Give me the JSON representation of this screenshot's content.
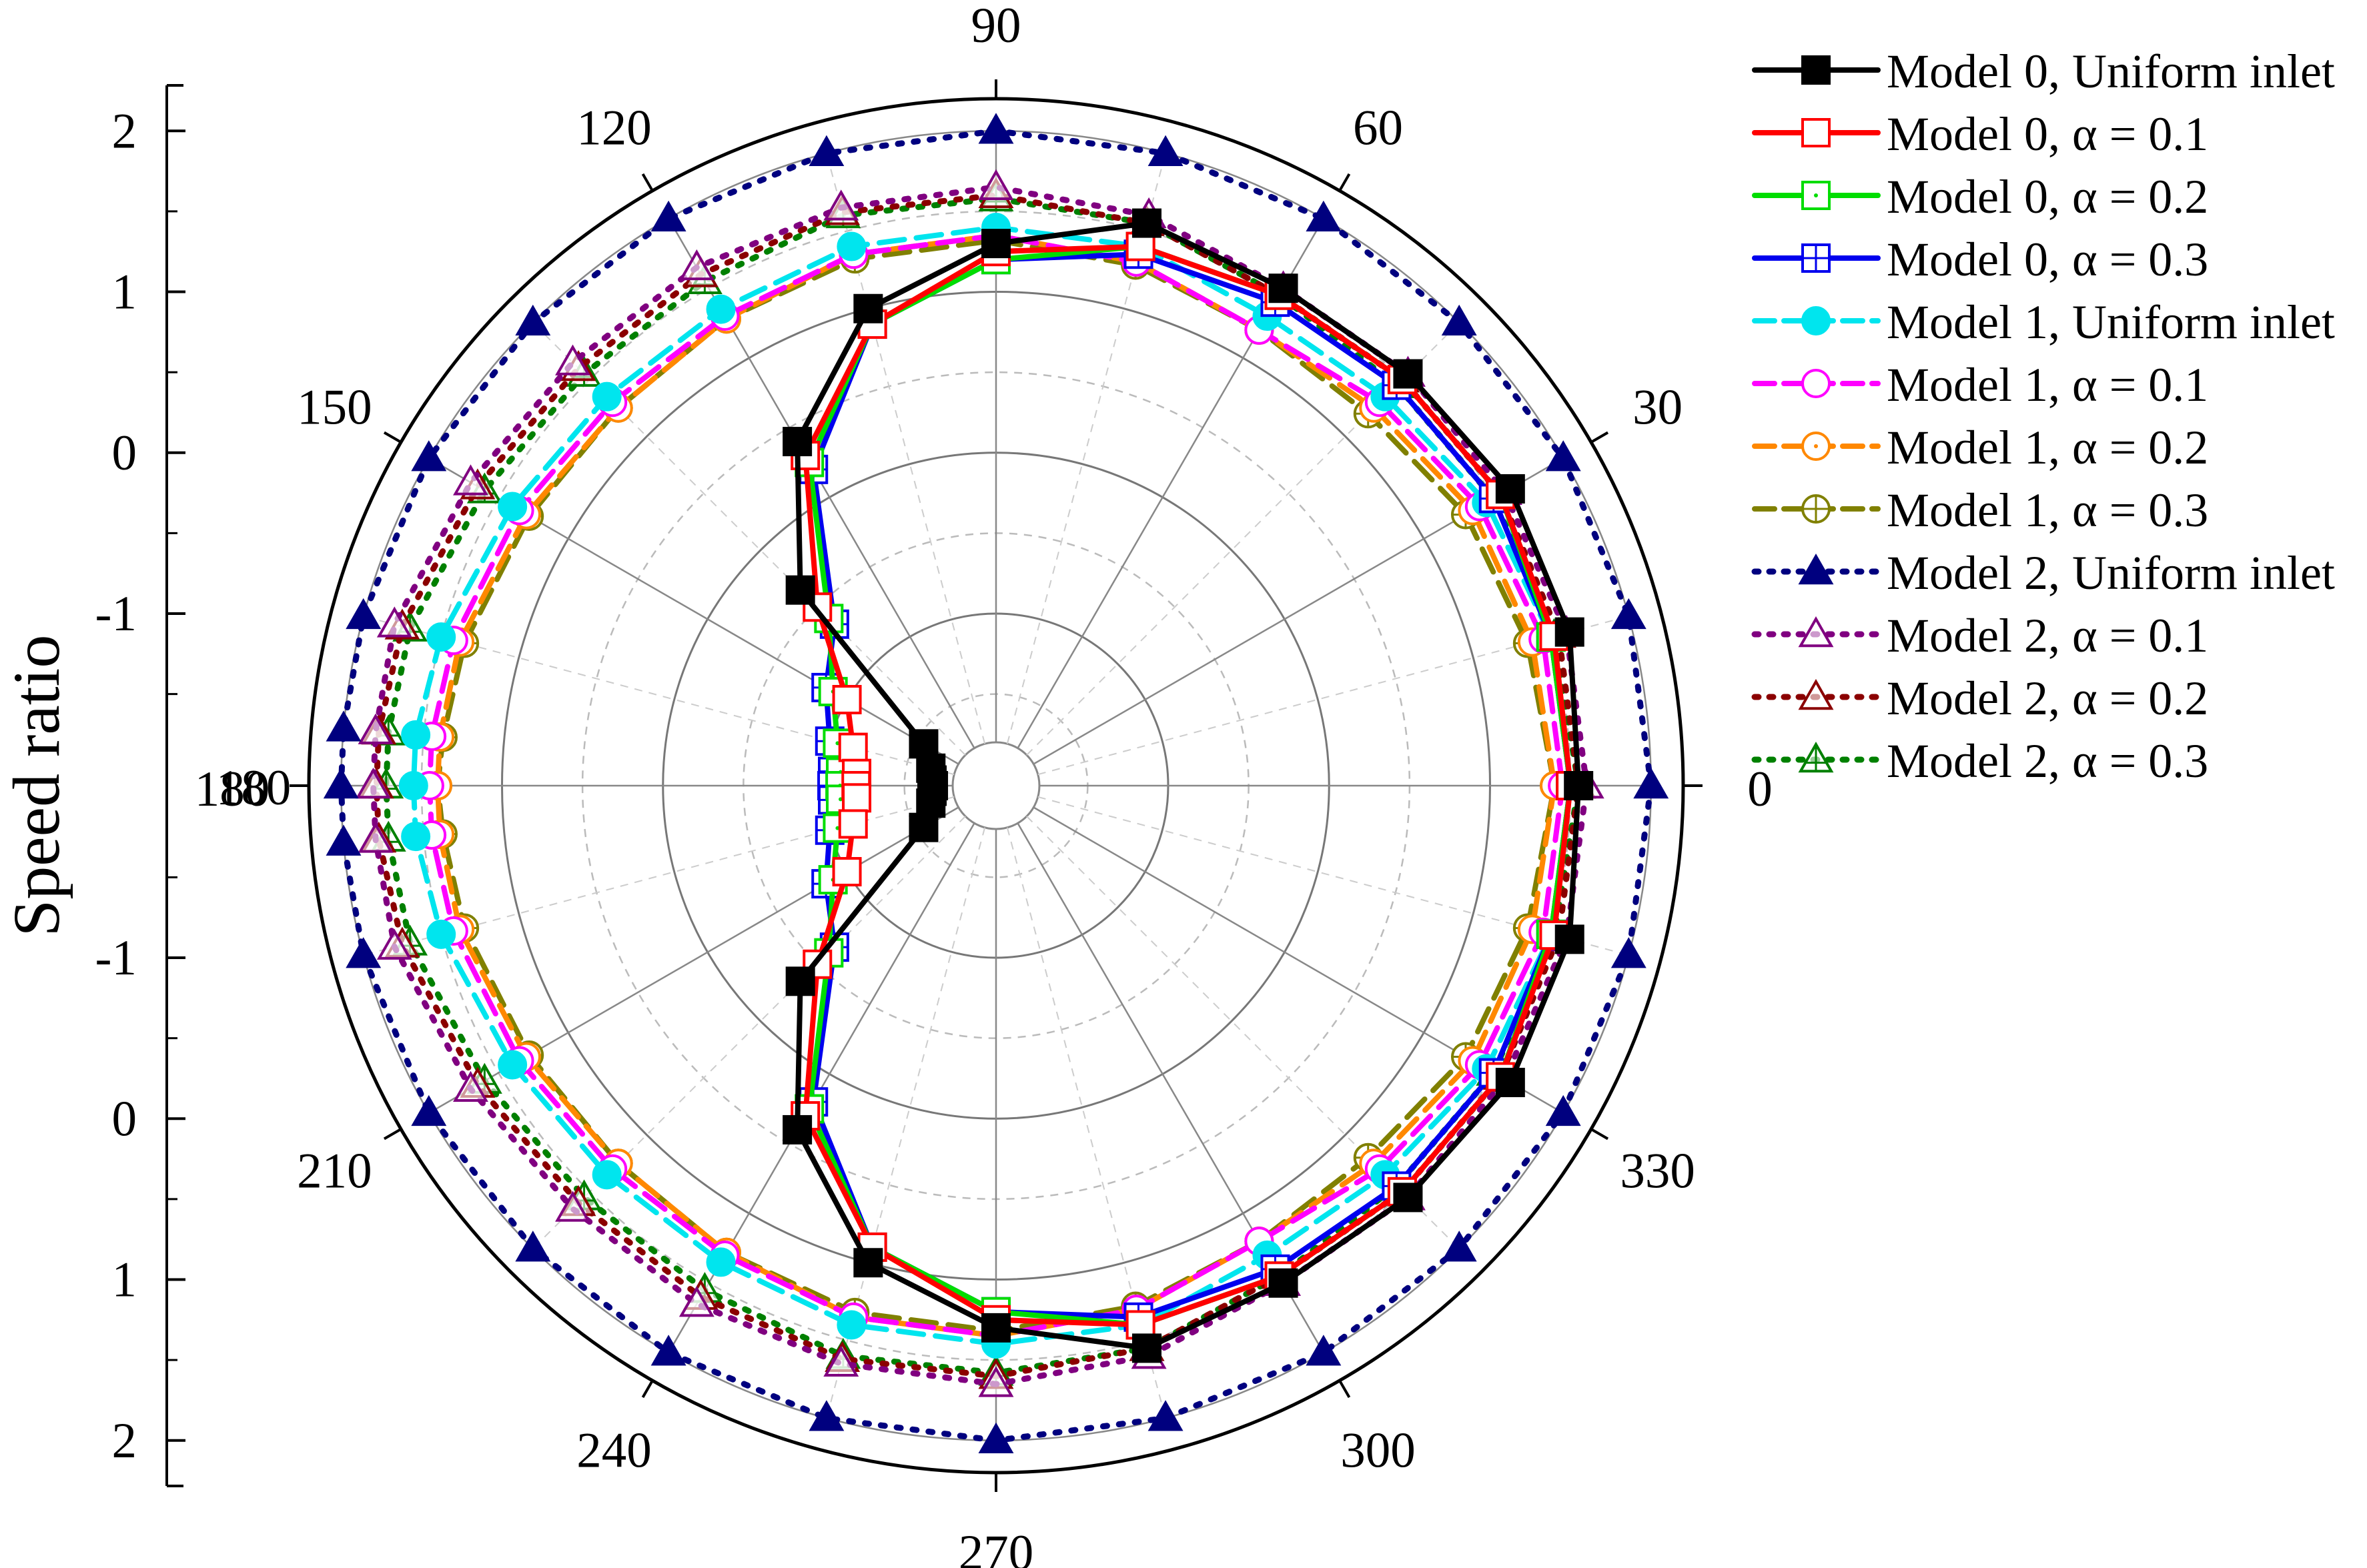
{
  "chart_data": {
    "type": "polar-line",
    "ylabel": "Speed ratio",
    "angle_unit": "degrees",
    "angle_ticks": [
      0,
      30,
      60,
      90,
      120,
      150,
      180,
      210,
      240,
      270,
      300,
      330
    ],
    "radial_axis": {
      "range": [
        -1.8,
        2.2
      ],
      "tick_labels_top": [
        "2",
        "1",
        "0",
        "-1"
      ],
      "tick_labels_bottom": [
        "-1",
        "0",
        "1",
        "2"
      ],
      "center_label": "180"
    },
    "angles": [
      0,
      15,
      30,
      45,
      60,
      75,
      90,
      105,
      120,
      135,
      150,
      165,
      175,
      180,
      185,
      195,
      210,
      225,
      240,
      255,
      270,
      285,
      300,
      315,
      330,
      345
    ],
    "series": [
      {
        "name": "Model 0, Uniform inlet",
        "color": "#000000",
        "dash": "solid",
        "marker": "square-filled",
        "values": [
          1.55,
          1.62,
          1.62,
          1.55,
          1.5,
          1.55,
          1.3,
          1.0,
          0.4,
          -0.35,
          -1.55,
          -1.65,
          -1.67,
          -1.68,
          -1.67,
          -1.65,
          -1.55,
          -0.35,
          0.4,
          1.0,
          1.3,
          1.55,
          1.5,
          1.55,
          1.62,
          1.62
        ]
      },
      {
        "name": "Model 0, α = 0.1",
        "color": "#ff0000",
        "dash": "solid",
        "marker": "square-open",
        "values": [
          1.5,
          1.52,
          1.55,
          1.5,
          1.45,
          1.4,
          1.25,
          0.9,
          0.3,
          -0.5,
          -1.0,
          -1.15,
          -1.2,
          -1.2,
          -1.2,
          -1.15,
          -1.0,
          -0.5,
          0.3,
          0.9,
          1.25,
          1.4,
          1.45,
          1.5,
          1.55,
          1.52
        ]
      },
      {
        "name": "Model 0, α = 0.2",
        "color": "#00dd00",
        "dash": "solid",
        "marker": "square-dot",
        "values": [
          1.5,
          1.5,
          1.55,
          1.5,
          1.45,
          1.4,
          1.2,
          0.9,
          0.25,
          -0.6,
          -0.9,
          -1.05,
          -1.1,
          -1.1,
          -1.1,
          -1.05,
          -0.9,
          -0.6,
          0.25,
          0.9,
          1.2,
          1.4,
          1.45,
          1.5,
          1.55,
          1.5
        ]
      },
      {
        "name": "Model 0, α = 0.3",
        "color": "#0000ee",
        "dash": "solid",
        "marker": "square-cross",
        "values": [
          1.5,
          1.5,
          1.5,
          1.45,
          1.4,
          1.35,
          1.2,
          0.9,
          0.2,
          -0.65,
          -0.85,
          -1.0,
          -1.05,
          -1.05,
          -1.05,
          -1.0,
          -0.85,
          -0.65,
          0.2,
          0.9,
          1.2,
          1.35,
          1.4,
          1.45,
          1.5,
          1.5
        ]
      },
      {
        "name": "Model 1, Uniform inlet",
        "color": "#00e5ee",
        "dash": "dash",
        "marker": "circle-filled",
        "values": [
          1.5,
          1.5,
          1.45,
          1.35,
          1.3,
          1.4,
          1.4,
          1.4,
          1.35,
          1.35,
          1.4,
          1.5,
          1.55,
          1.55,
          1.55,
          1.5,
          1.4,
          1.35,
          1.35,
          1.4,
          1.4,
          1.4,
          1.3,
          1.35,
          1.45,
          1.5
        ]
      },
      {
        "name": "Model 1, α = 0.1",
        "color": "#ff00ff",
        "dash": "dash",
        "marker": "circle-open",
        "values": [
          1.45,
          1.45,
          1.4,
          1.3,
          1.2,
          1.3,
          1.35,
          1.35,
          1.3,
          1.3,
          1.35,
          1.42,
          1.45,
          1.45,
          1.45,
          1.42,
          1.35,
          1.3,
          1.3,
          1.35,
          1.35,
          1.3,
          1.2,
          1.3,
          1.4,
          1.45
        ]
      },
      {
        "name": "Model 1, α = 0.2",
        "color": "#ff8800",
        "dash": "dash",
        "marker": "circle-dot",
        "values": [
          1.4,
          1.38,
          1.35,
          1.25,
          1.2,
          1.3,
          1.35,
          1.35,
          1.28,
          1.25,
          1.3,
          1.38,
          1.4,
          1.4,
          1.4,
          1.38,
          1.3,
          1.25,
          1.28,
          1.35,
          1.35,
          1.3,
          1.2,
          1.25,
          1.35,
          1.38
        ]
      },
      {
        "name": "Model 1, α = 0.3",
        "color": "#808000",
        "dash": "dash",
        "marker": "circle-cross",
        "values": [
          1.4,
          1.35,
          1.3,
          1.2,
          1.2,
          1.28,
          1.32,
          1.32,
          1.28,
          1.25,
          1.28,
          1.35,
          1.38,
          1.4,
          1.38,
          1.35,
          1.28,
          1.25,
          1.28,
          1.32,
          1.32,
          1.28,
          1.2,
          1.2,
          1.3,
          1.35
        ]
      },
      {
        "name": "Model 2, Uniform inlet",
        "color": "#00007f",
        "dash": "dot",
        "marker": "triangle-filled",
        "values": [
          2.0,
          2.0,
          2.0,
          2.0,
          2.0,
          2.0,
          2.0,
          2.0,
          2.0,
          2.0,
          2.0,
          2.0,
          2.0,
          2.0,
          2.0,
          2.0,
          2.0,
          2.0,
          2.0,
          2.0,
          2.0,
          2.0,
          2.0,
          2.0,
          2.0,
          2.0
        ]
      },
      {
        "name": "Model 2, α = 0.1",
        "color": "#800080",
        "dash": "dot",
        "marker": "triangle-open",
        "values": [
          1.6,
          1.6,
          1.58,
          1.55,
          1.5,
          1.6,
          1.65,
          1.65,
          1.65,
          1.65,
          1.7,
          1.8,
          1.8,
          1.8,
          1.8,
          1.8,
          1.7,
          1.65,
          1.65,
          1.65,
          1.65,
          1.6,
          1.5,
          1.55,
          1.58,
          1.6
        ]
      },
      {
        "name": "Model 2, α = 0.2",
        "color": "#8b0000",
        "dash": "dot",
        "marker": "triangle-open",
        "values": [
          1.55,
          1.55,
          1.55,
          1.5,
          1.45,
          1.55,
          1.6,
          1.62,
          1.6,
          1.6,
          1.65,
          1.75,
          1.78,
          1.78,
          1.78,
          1.75,
          1.65,
          1.6,
          1.6,
          1.62,
          1.6,
          1.55,
          1.45,
          1.5,
          1.55,
          1.55
        ]
      },
      {
        "name": "Model 2, α = 0.3",
        "color": "#008000",
        "dash": "dot",
        "marker": "triangle-cross",
        "values": [
          1.55,
          1.52,
          1.5,
          1.45,
          1.45,
          1.55,
          1.58,
          1.6,
          1.55,
          1.55,
          1.6,
          1.7,
          1.72,
          1.72,
          1.72,
          1.7,
          1.6,
          1.55,
          1.55,
          1.6,
          1.58,
          1.55,
          1.45,
          1.45,
          1.5,
          1.52
        ]
      }
    ]
  }
}
